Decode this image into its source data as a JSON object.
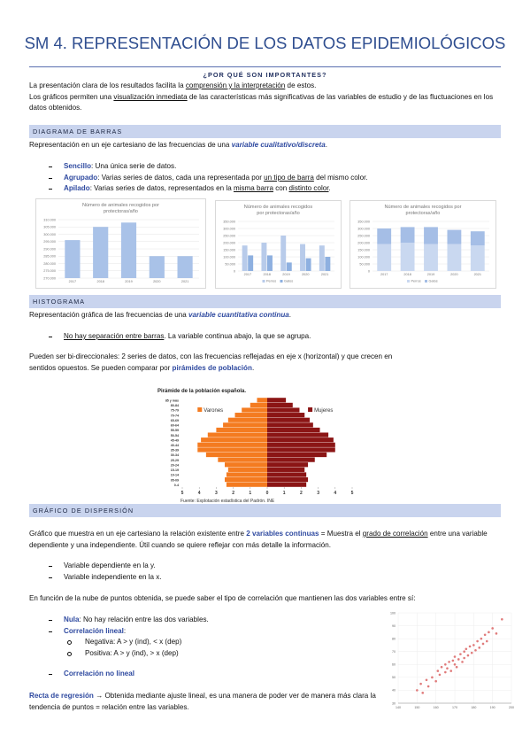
{
  "title": "SM 4. REPRESENTACIÓN DE LOS DATOS EPIDEMIOLÓGICOS",
  "why": {
    "heading": "¿POR QUÉ SON IMPORTANTES?",
    "p1": [
      "La presentación clara de los resultados facilita la ",
      "comprensión y la interpretación",
      " de estos."
    ],
    "p2": [
      "Los gráficos permiten una ",
      "visualización inmediata",
      " de las características más significativas de las variables de estudio y de las fluctuaciones en los datos obtenidos."
    ]
  },
  "bars": {
    "heading": "DIAGRAMA DE BARRAS",
    "intro": [
      "Representación en un eje cartesiano de las frecuencias de una ",
      "variable cualitativo/discreta",
      "."
    ],
    "items": [
      [
        "Sencillo",
        ": Una única serie de datos."
      ],
      [
        "Agrupado",
        ": Varias series de datos, cada una representada por ",
        "un tipo de barra",
        " del mismo color."
      ],
      [
        "Apilado",
        ": Varias series de datos, representados en la ",
        "misma barra",
        " con ",
        "distinto color",
        "."
      ]
    ]
  },
  "histogram": {
    "heading": "HISTOGRAMA",
    "intro": [
      "Representación gráfica de las frecuencias de una ",
      "variable cuantitativa continua",
      "."
    ],
    "item": [
      "No hay separación entre barras",
      ". La variable continua abajo, la que se agrupa."
    ],
    "p": [
      "Pueden ser bi-direccionales: 2 series de datos, con las frecuencias reflejadas en eje x (horizontal) y que crecen en sentidos opuestos. Se pueden comparar por ",
      "pirámides de población",
      "."
    ]
  },
  "scatter": {
    "heading": "GRÁFICO DE DISPERSIÓN",
    "intro": [
      "Gráfico que muestra en un eje cartesiano la relación existente entre ",
      "2 variables continuas",
      " = Muestra el ",
      "grado de correlación",
      " entre una variable dependiente y una independiente. Útil cuando se quiere reflejar con más detalle la información."
    ],
    "items": [
      "Variable dependiente en la y.",
      "Variable independiente en la x."
    ],
    "p": "En función de la nube de puntos obtenida, se puede saber el tipo de correlación que mantienen las dos variables entre sí:",
    "types": [
      [
        "Nula",
        ": No hay relación entre las dos variables."
      ],
      [
        "Correlación lineal",
        ":"
      ],
      [
        "Correlación no lineal"
      ]
    ],
    "sub": [
      "Negativa: A > y (ind), < x (dep)",
      "Positiva: A > y (ind), > x (dep)"
    ],
    "regression": [
      "Recta de regresión",
      " → Obtenida mediante ajuste lineal, es una manera de poder ver de manera más clara la tendencia de puntos = relación entre las variables."
    ]
  },
  "chart_data": [
    {
      "type": "bar",
      "title": "Número de animales recogidos por protectoras/año",
      "categories": [
        "2017",
        "2018",
        "2019",
        "2020",
        "2021"
      ],
      "values": [
        296000,
        305000,
        308000,
        285000,
        285000
      ],
      "color": "#a9c2e8",
      "ylim": [
        270000,
        310000
      ],
      "yticks": [
        {
          "value": 270000,
          "label": "270.000"
        },
        {
          "value": 275000,
          "label": "275.000"
        },
        {
          "value": 280000,
          "label": "280.000"
        },
        {
          "value": 285000,
          "label": "285.000"
        },
        {
          "value": 290000,
          "label": "290.000"
        },
        {
          "value": 295000,
          "label": "295.000"
        },
        {
          "value": 300000,
          "label": "300.000"
        },
        {
          "value": 305000,
          "label": "305.000"
        },
        {
          "value": 310000,
          "label": "310.000"
        }
      ],
      "grid": true
    },
    {
      "type": "bar",
      "title": "Número de animales recogidos por protectoras/año",
      "categories": [
        "2017",
        "2018",
        "2019",
        "2020",
        "2021"
      ],
      "series": [
        {
          "name": "Perros",
          "color": "#b8cbea",
          "values": [
            180000,
            200000,
            250000,
            190000,
            180000
          ]
        },
        {
          "name": "Gatos",
          "color": "#8eb0e0",
          "values": [
            110000,
            110000,
            60000,
            90000,
            100000
          ]
        }
      ],
      "ylim": [
        0,
        350000
      ],
      "yticks": [
        0,
        {
          "value": 50000,
          "label": "50.000"
        },
        {
          "value": 100000,
          "label": "100.000"
        },
        {
          "value": 150000,
          "label": "150.000"
        },
        {
          "value": 200000,
          "label": "200.000"
        },
        {
          "value": 250000,
          "label": "250.000"
        },
        {
          "value": 300000,
          "label": "300.000"
        },
        {
          "value": 350000,
          "label": "350.000"
        }
      ],
      "grid": true,
      "stacked": false
    },
    {
      "type": "bar",
      "title": "Número de animales recogidos por protectoras/año",
      "categories": [
        "2017",
        "2018",
        "2019",
        "2020",
        "2021"
      ],
      "series": [
        {
          "name": "Perros",
          "color": "#c9d8f0",
          "values": [
            190000,
            200000,
            190000,
            190000,
            180000
          ]
        },
        {
          "name": "Gatos",
          "color": "#a5bee6",
          "values": [
            110000,
            110000,
            120000,
            100000,
            100000
          ]
        }
      ],
      "ylim": [
        0,
        350000
      ],
      "yticks": [
        0,
        {
          "value": 50000,
          "label": "50.000"
        },
        {
          "value": 100000,
          "label": "100.000"
        },
        {
          "value": 150000,
          "label": "150.000"
        },
        {
          "value": 200000,
          "label": "200.000"
        },
        {
          "value": 250000,
          "label": "250.000"
        },
        {
          "value": 300000,
          "label": "300.000"
        },
        {
          "value": 350000,
          "label": "350.000"
        }
      ],
      "grid": true,
      "stacked": true
    },
    {
      "type": "pyramid",
      "title": "Pirámide de la población española.",
      "categories": [
        "0-4",
        "05-09",
        "10-14",
        "15-19",
        "20-24",
        "25-29",
        "30-34",
        "35-39",
        "40-44",
        "45-49",
        "50-54",
        "55-59",
        "60-64",
        "65-69",
        "70-74",
        "75-79",
        "80-84",
        "85 y más"
      ],
      "series": [
        {
          "name": "Varones",
          "color": "#f47b20",
          "values": [
            2.4,
            2.5,
            2.4,
            2.3,
            2.5,
            2.9,
            3.6,
            4.1,
            4.1,
            3.9,
            3.5,
            3.0,
            2.6,
            2.3,
            1.9,
            1.5,
            1.0,
            0.6
          ]
        },
        {
          "name": "Mujeres",
          "color": "#8b1515",
          "values": [
            2.3,
            2.4,
            2.3,
            2.2,
            2.4,
            2.8,
            3.5,
            4.0,
            4.0,
            3.9,
            3.6,
            3.1,
            2.7,
            2.5,
            2.2,
            1.9,
            1.5,
            1.1
          ]
        }
      ],
      "xlim": [
        -5,
        5
      ],
      "xticks": [
        {
          "value": -5,
          "label": "5"
        },
        {
          "value": -4,
          "label": "4"
        },
        {
          "value": -3,
          "label": "3"
        },
        {
          "value": -2,
          "label": "2"
        },
        {
          "value": -1,
          "label": "1"
        },
        0,
        1,
        2,
        3,
        4,
        5
      ],
      "source": "Fuente: Explotación estadística del Padrón. INE"
    },
    {
      "type": "scatter",
      "x": [
        150,
        152,
        153,
        155,
        156,
        158,
        160,
        161,
        162,
        163,
        165,
        165,
        166,
        167,
        168,
        169,
        170,
        170,
        171,
        172,
        173,
        174,
        175,
        175,
        176,
        177,
        178,
        179,
        180,
        181,
        182,
        183,
        184,
        185,
        186,
        187,
        188,
        190,
        192,
        195
      ],
      "values": [
        40,
        45,
        38,
        48,
        43,
        50,
        47,
        55,
        52,
        58,
        54,
        60,
        57,
        62,
        55,
        63,
        60,
        66,
        58,
        64,
        68,
        62,
        70,
        65,
        72,
        67,
        74,
        69,
        75,
        71,
        78,
        73,
        80,
        76,
        83,
        78,
        85,
        88,
        84,
        95
      ],
      "color": "#e07b7b",
      "xlim": [
        140,
        200
      ],
      "xticks": [
        140,
        150,
        160,
        170,
        180,
        190,
        200
      ],
      "ylim": [
        30,
        100
      ],
      "yticks": [
        30,
        40,
        50,
        60,
        70,
        80,
        90,
        100
      ],
      "grid": true
    }
  ]
}
